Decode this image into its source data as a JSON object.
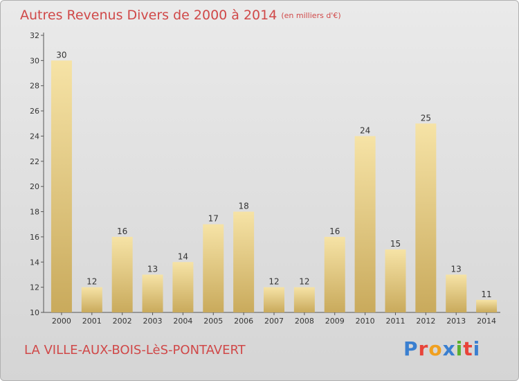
{
  "header": {
    "title": "Autres Revenus Divers de 2000 à 2014",
    "unit": "(en milliers d'€)"
  },
  "footer": {
    "commune": "LA VILLE-AUX-BOIS-LèS-PONTAVERT",
    "logo_text": "Proxiti",
    "logo_colors": [
      "#3a7fd0",
      "#e8443a",
      "#f0a020",
      "#3a7fd0",
      "#5ab030",
      "#e8443a",
      "#3a7fd0"
    ]
  },
  "chart_data": {
    "type": "bar",
    "title": "Autres Revenus Divers de 2000 à 2014",
    "xlabel": "",
    "ylabel": "",
    "categories": [
      "2000",
      "2001",
      "2002",
      "2003",
      "2004",
      "2005",
      "2006",
      "2007",
      "2008",
      "2009",
      "2010",
      "2011",
      "2012",
      "2013",
      "2014"
    ],
    "values": [
      30,
      12,
      16,
      13,
      14,
      17,
      18,
      12,
      12,
      16,
      24,
      15,
      25,
      13,
      11
    ],
    "ylim": [
      10,
      32
    ],
    "yticks": [
      10,
      12,
      14,
      16,
      18,
      20,
      22,
      24,
      26,
      28,
      30,
      32
    ],
    "grid": false,
    "data_labels": true,
    "bar_color": "#e9cf8a"
  }
}
